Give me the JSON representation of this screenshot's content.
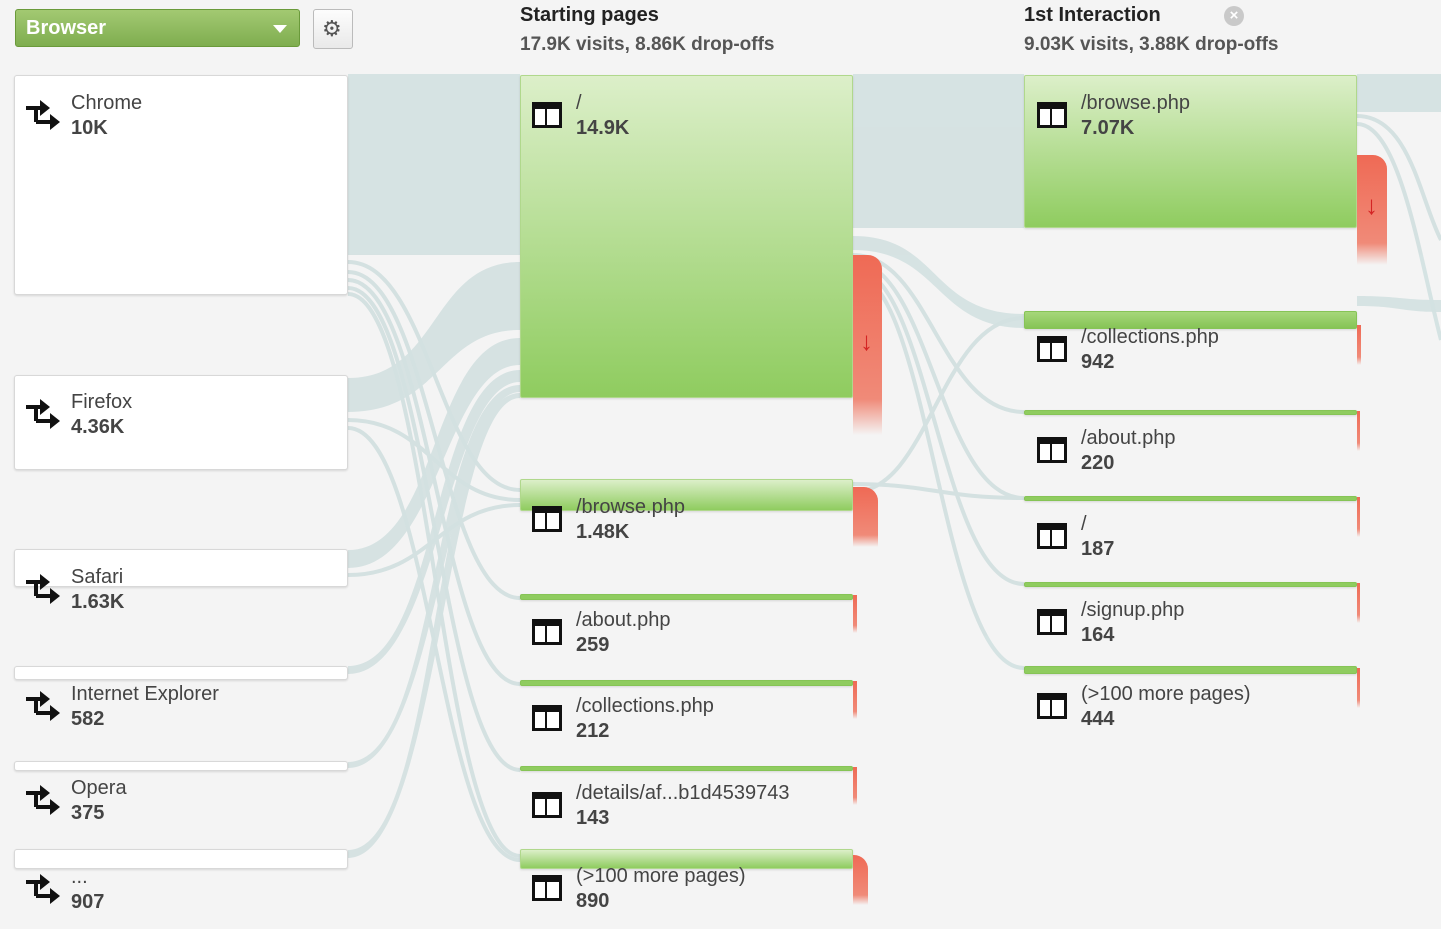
{
  "dimension": {
    "selected": "Browser",
    "settings_icon": "gear-icon"
  },
  "columns": [
    {
      "title": "Starting pages",
      "summary": "17.9K visits, 8.86K drop-offs"
    },
    {
      "title": "1st Interaction",
      "summary": "9.03K visits, 3.88K drop-offs"
    }
  ],
  "browsers": [
    {
      "label": "Chrome",
      "value": "10K"
    },
    {
      "label": "Firefox",
      "value": "4.36K"
    },
    {
      "label": "Safari",
      "value": "1.63K"
    },
    {
      "label": "Internet Explorer",
      "value": "582"
    },
    {
      "label": "Opera",
      "value": "375"
    },
    {
      "label": "...",
      "value": "907"
    }
  ],
  "starting_pages": [
    {
      "label": "/",
      "value": "14.9K"
    },
    {
      "label": "/browse.php",
      "value": "1.48K"
    },
    {
      "label": "/about.php",
      "value": "259"
    },
    {
      "label": "/collections.php",
      "value": "212"
    },
    {
      "label": "/details/af...b1d4539743",
      "value": "143"
    },
    {
      "label": "(>100 more pages)",
      "value": "890"
    }
  ],
  "first_interaction": [
    {
      "label": "/browse.php",
      "value": "7.07K"
    },
    {
      "label": "/collections.php",
      "value": "942"
    },
    {
      "label": "/about.php",
      "value": "220"
    },
    {
      "label": "/",
      "value": "187"
    },
    {
      "label": "/signup.php",
      "value": "164"
    },
    {
      "label": "(>100 more pages)",
      "value": "444"
    }
  ],
  "colors": {
    "node_green": "#8fcc5f",
    "dropoff_red": "#ef6a55",
    "flow": "#d3e1e1"
  }
}
